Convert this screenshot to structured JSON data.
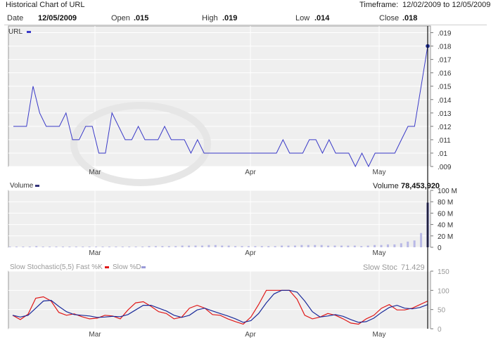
{
  "header": {
    "title": "Historical Chart of URL",
    "timeframe_label": "Timeframe:",
    "timeframe_value": "12/02/2009 to 12/05/2009"
  },
  "info": {
    "date_label": "Date",
    "date_value": "12/05/2009",
    "open_label": "Open",
    "open_value": ".015",
    "high_label": "High",
    "high_value": ".019",
    "low_label": "Low",
    "low_value": ".014",
    "close_label": "Close",
    "close_value": ".018"
  },
  "colors": {
    "price_line": "#3a3ac8",
    "volume_bar": "#b9b9e6",
    "volume_bar_last": "#33337a",
    "fast_k": "#e01818",
    "slow_d": "#1a2a9a",
    "panel_bg": "#efefef",
    "grid": "#ffffff"
  },
  "chart_data": [
    {
      "type": "line",
      "legend": "URL",
      "x_ticks": [
        "Mar",
        "Apr",
        "May"
      ],
      "ylim": [
        0.009,
        0.0195
      ],
      "y_ticks": [
        ".019",
        ".018",
        ".017",
        ".016",
        ".015",
        ".014",
        ".013",
        ".012",
        ".011",
        ".01",
        ".009"
      ],
      "y_tick_values": [
        0.019,
        0.018,
        0.017,
        0.016,
        0.015,
        0.014,
        0.013,
        0.012,
        0.011,
        0.01,
        0.009
      ],
      "values": [
        0.012,
        0.012,
        0.012,
        0.015,
        0.013,
        0.012,
        0.012,
        0.012,
        0.013,
        0.011,
        0.011,
        0.012,
        0.012,
        0.01,
        0.01,
        0.013,
        0.012,
        0.011,
        0.011,
        0.012,
        0.011,
        0.011,
        0.011,
        0.012,
        0.011,
        0.011,
        0.011,
        0.01,
        0.011,
        0.01,
        0.01,
        0.01,
        0.01,
        0.01,
        0.01,
        0.01,
        0.01,
        0.01,
        0.01,
        0.01,
        0.01,
        0.011,
        0.01,
        0.01,
        0.01,
        0.011,
        0.011,
        0.01,
        0.011,
        0.01,
        0.01,
        0.01,
        0.009,
        0.01,
        0.009,
        0.01,
        0.01,
        0.01,
        0.01,
        0.011,
        0.012,
        0.012,
        0.015,
        0.018
      ]
    },
    {
      "type": "bar",
      "legend": "Volume",
      "last_label": "Volume",
      "last_value": "78,453,920",
      "ylim": [
        0,
        100
      ],
      "y_ticks": [
        "100 M",
        "80 M",
        "60 M",
        "40 M",
        "20 M",
        "0"
      ],
      "y_tick_values": [
        100,
        80,
        60,
        40,
        20,
        0
      ],
      "x_ticks": [
        "Mar",
        "Apr",
        "May"
      ],
      "values": [
        0.5,
        1,
        1,
        1,
        2,
        1,
        0.5,
        1,
        1,
        0.5,
        1,
        0.5,
        0.5,
        1,
        1,
        1,
        1,
        1,
        1,
        1,
        1,
        2,
        2,
        2,
        2,
        2,
        3,
        3,
        3,
        3,
        4,
        4,
        3,
        3,
        2,
        2,
        2,
        2,
        2,
        2,
        2,
        3,
        3,
        3,
        4,
        4,
        4,
        4,
        3,
        3,
        3,
        3,
        3,
        2,
        3,
        4,
        4,
        5,
        5,
        7,
        10,
        12,
        25,
        78.45
      ]
    },
    {
      "type": "line",
      "legend_title": "Slow Stochastic(5,5)",
      "series": [
        {
          "name": "Fast %K",
          "values": [
            30,
            18,
            33,
            78,
            82,
            70,
            38,
            30,
            34,
            26,
            20,
            22,
            30,
            28,
            20,
            45,
            65,
            68,
            55,
            40,
            35,
            20,
            25,
            50,
            58,
            50,
            32,
            30,
            20,
            12,
            5,
            25,
            60,
            100,
            100,
            100,
            100,
            75,
            30,
            20,
            25,
            35,
            30,
            20,
            8,
            5,
            20,
            30,
            50,
            60,
            45,
            45,
            50,
            60,
            70
          ]
        },
        {
          "name": "Slow %D",
          "values": [
            30,
            25,
            30,
            50,
            70,
            72,
            55,
            40,
            32,
            30,
            28,
            24,
            25,
            27,
            26,
            32,
            45,
            58,
            58,
            50,
            42,
            30,
            24,
            30,
            45,
            50,
            42,
            35,
            28,
            20,
            10,
            15,
            35,
            65,
            90,
            100,
            100,
            95,
            70,
            40,
            25,
            28,
            32,
            27,
            18,
            10,
            12,
            22,
            38,
            52,
            58,
            50,
            48,
            52,
            60
          ]
        }
      ],
      "last_label": "Slow Stoc",
      "last_value": "71.429",
      "ylim": [
        0,
        115
      ],
      "y_ticks": [
        "150",
        "100",
        "50",
        "0"
      ],
      "y_tick_values": [
        150,
        100,
        50,
        0
      ],
      "x_ticks": [
        "Mar",
        "Apr",
        "May"
      ]
    }
  ]
}
